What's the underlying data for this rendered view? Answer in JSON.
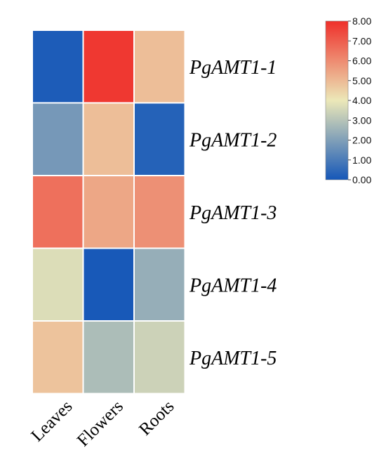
{
  "chart_data": {
    "type": "heatmap",
    "rows": [
      "PgAMT1-1",
      "PgAMT1-2",
      "PgAMT1-3",
      "PgAMT1-4",
      "PgAMT1-5"
    ],
    "columns": [
      "Leaves",
      "Flowers",
      "Roots"
    ],
    "values": [
      [
        0.15,
        7.8,
        4.9
      ],
      [
        1.8,
        4.9,
        0.3
      ],
      [
        6.6,
        5.4,
        5.9
      ],
      [
        3.7,
        0.05,
        2.4
      ],
      [
        4.8,
        2.8,
        3.4
      ]
    ],
    "colorbar": {
      "min": 0,
      "max": 8,
      "ticks": [
        "0.00",
        "1.00",
        "2.00",
        "3.00",
        "4.00",
        "5.00",
        "6.00",
        "7.00",
        "8.00"
      ],
      "stops": [
        "#1557b8",
        "#ece8b8",
        "#ef2f2a"
      ]
    },
    "legend_position": "top-right"
  }
}
